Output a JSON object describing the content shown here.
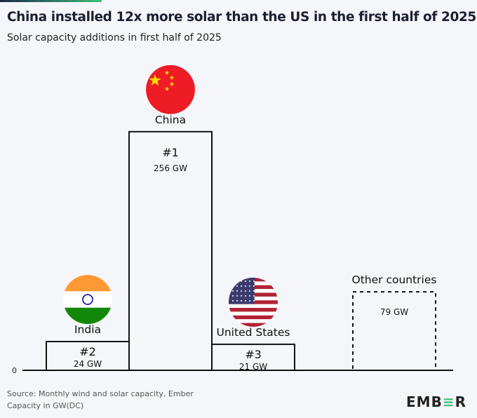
{
  "title": "China installed 12x more solar than the US in the first half of 2025",
  "subtitle": "Solar capacity additions in first half of 2025",
  "footer": {
    "source": "Source: Monthly wind and solar capacity, Ember",
    "units": "Capacity in GW(DC)"
  },
  "logo": "EMBER",
  "colors": {
    "accent_start": "#1c2a4a",
    "accent_end": "#3fbf7a",
    "bar_stroke": "#111111"
  },
  "chart_data": {
    "type": "bar",
    "title": "China installed 12x more solar than the US in the first half of 2025",
    "subtitle": "Solar capacity additions in first half of 2025",
    "categories": [
      "India",
      "China",
      "United States",
      "Other countries"
    ],
    "ranks": [
      "#2",
      "#1",
      "#3",
      ""
    ],
    "values": [
      24,
      256,
      21,
      79
    ],
    "value_labels": [
      "24 GW",
      "256 GW",
      "21 GW",
      "79 GW"
    ],
    "flags": [
      "india",
      "china",
      "usa",
      ""
    ],
    "dashed": [
      false,
      false,
      false,
      true
    ],
    "y_tick_labels": [
      "0"
    ],
    "ylabel": "Capacity in GW(DC)",
    "ylim": [
      0,
      256
    ],
    "grid": false
  }
}
